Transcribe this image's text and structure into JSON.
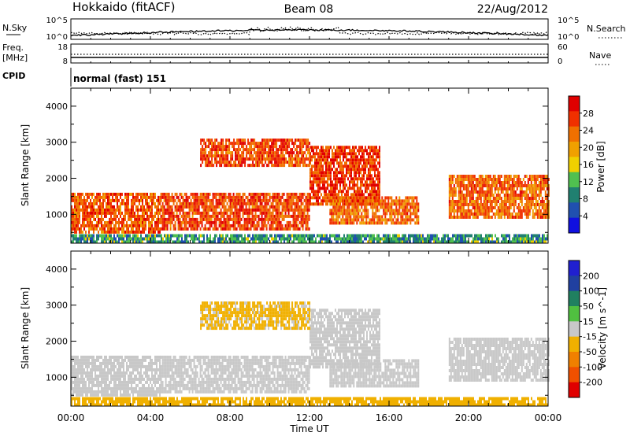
{
  "header": {
    "radar": "Hokkaido (fitACF)",
    "beam": "Beam 08",
    "date": "22/Aug/2012"
  },
  "summary_panels": {
    "nsky_label": "N.Sky",
    "nsearch_label": "N.Search",
    "nsky_ticks": [
      "10^5",
      "10^0"
    ],
    "nsearch_ticks": [
      "10^5",
      "10^0"
    ],
    "freq_label_1": "Freq.",
    "freq_label_2": "[MHz]",
    "freq_ticks": [
      "18",
      "8"
    ],
    "nave_label": "Nave",
    "nave_ticks": [
      "60",
      "0"
    ],
    "cpid_label": "CPID",
    "cpid_text": "normal (fast) 151"
  },
  "colors": {
    "power_scale": [
      "#1010e0",
      "#2050b0",
      "#208070",
      "#50c050",
      "#f0d000",
      "#f0a000",
      "#f07000",
      "#f03000",
      "#e00000"
    ],
    "velocity_scale": [
      "#2020d0",
      "#2040a0",
      "#208060",
      "#50c040",
      "#c8c8c8",
      "#f0b000",
      "#f08000",
      "#f05000",
      "#e00000"
    ]
  },
  "chart_data": [
    {
      "type": "heatmap",
      "panel": "power",
      "ylabel": "Slant Range [km]",
      "y_ticks": [
        1000,
        2000,
        3000,
        4000
      ],
      "ylim": [
        200,
        4500
      ],
      "xlim": [
        0,
        24
      ],
      "colorbar_label": "Power [dB]",
      "colorbar_ticks": [
        4,
        8,
        12,
        16,
        20,
        24,
        28
      ],
      "colorbar_range": [
        0,
        32
      ],
      "regions": [
        {
          "t": [
            0,
            4.5
          ],
          "r": [
            500,
            1600
          ],
          "v": 25
        },
        {
          "t": [
            4.5,
            12
          ],
          "r": [
            600,
            1600
          ],
          "v": 26
        },
        {
          "t": [
            12,
            15.5
          ],
          "r": [
            1300,
            2900
          ],
          "v": 27
        },
        {
          "t": [
            6.5,
            12
          ],
          "r": [
            2400,
            3100
          ],
          "v": 26
        },
        {
          "t": [
            13,
            17.5
          ],
          "r": [
            800,
            1500
          ],
          "v": 24
        },
        {
          "t": [
            19,
            24
          ],
          "r": [
            900,
            2100
          ],
          "v": 24
        },
        {
          "t": [
            0,
            24
          ],
          "r": [
            250,
            450
          ],
          "v": 10
        }
      ]
    },
    {
      "type": "heatmap",
      "panel": "velocity",
      "ylabel": "Slant Range [km]",
      "y_ticks": [
        1000,
        2000,
        3000,
        4000
      ],
      "ylim": [
        200,
        4500
      ],
      "xlim": [
        0,
        24
      ],
      "colorbar_label": "Velocity [m s^-1]",
      "colorbar_ticks": [
        200,
        100,
        50,
        15,
        -15,
        -50,
        -100,
        -200
      ],
      "colorbar_range": [
        -250,
        250
      ],
      "regions": [
        {
          "t": [
            0,
            4.5
          ],
          "r": [
            500,
            1600
          ],
          "v": 0
        },
        {
          "t": [
            4.5,
            12
          ],
          "r": [
            600,
            1600
          ],
          "v": 0
        },
        {
          "t": [
            12,
            15.5
          ],
          "r": [
            1300,
            2900
          ],
          "v": 0
        },
        {
          "t": [
            6.5,
            12
          ],
          "r": [
            2400,
            3100
          ],
          "v": -40
        },
        {
          "t": [
            13,
            17.5
          ],
          "r": [
            800,
            1500
          ],
          "v": 0
        },
        {
          "t": [
            19,
            24
          ],
          "r": [
            900,
            2100
          ],
          "v": 0
        },
        {
          "t": [
            0,
            24
          ],
          "r": [
            250,
            450
          ],
          "v": -60
        }
      ]
    }
  ],
  "x_axis": {
    "tick_labels": [
      "00:00",
      "04:00",
      "08:00",
      "12:00",
      "16:00",
      "20:00",
      "00:00"
    ],
    "label": "Time UT"
  }
}
